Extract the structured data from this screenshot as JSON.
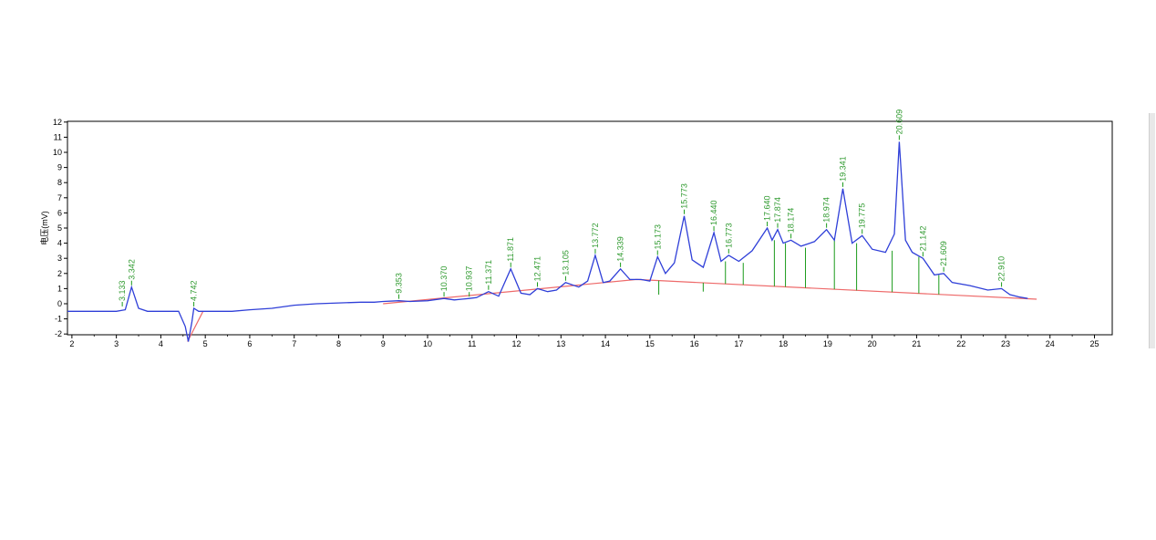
{
  "chart_data": {
    "type": "line",
    "ylabel": "电压(mV)",
    "xlabel": "",
    "xlim": [
      1.9,
      25.4
    ],
    "ylim": [
      -2.05,
      12.05
    ],
    "x_ticks": [
      2,
      3,
      4,
      5,
      6,
      7,
      8,
      9,
      10,
      11,
      12,
      13,
      14,
      15,
      16,
      17,
      18,
      19,
      20,
      21,
      22,
      23,
      24,
      25
    ],
    "y_ticks": [
      -2,
      -1,
      0,
      1,
      2,
      3,
      4,
      5,
      6,
      7,
      8,
      9,
      10,
      11,
      12
    ],
    "colors": {
      "signal": "#2f3fd8",
      "baseline": "#ee6a6a",
      "marker": "#1a9a1a",
      "label": "#2f9a2f",
      "axis": "#000000"
    },
    "series": [
      {
        "x": [
          1.9,
          2.5,
          3.0,
          3.2,
          3.342,
          3.5,
          3.7,
          4.0,
          4.4,
          4.55,
          4.62,
          4.7,
          4.742,
          4.85,
          5.2,
          5.6,
          6.0,
          6.5,
          7.0,
          7.5,
          8.0,
          8.5,
          8.8,
          9.0,
          9.353,
          9.6,
          10.0,
          10.37,
          10.6,
          10.937,
          11.1,
          11.371,
          11.6,
          11.871,
          12.1,
          12.3,
          12.471,
          12.7,
          12.9,
          13.105,
          13.4,
          13.6,
          13.772,
          13.95,
          14.1,
          14.339,
          14.55,
          14.8,
          15.0,
          15.173,
          15.35,
          15.55,
          15.773,
          15.95,
          16.2,
          16.44,
          16.6,
          16.773,
          17.0,
          17.3,
          17.64,
          17.75,
          17.874,
          18.0,
          18.174,
          18.4,
          18.7,
          18.974,
          19.15,
          19.341,
          19.55,
          19.775,
          20.0,
          20.3,
          20.5,
          20.609,
          20.75,
          20.9,
          21.142,
          21.4,
          21.609,
          21.8,
          22.2,
          22.6,
          22.91,
          23.1,
          23.3,
          23.5
        ],
        "y": [
          -0.5,
          -0.5,
          -0.5,
          -0.4,
          1.1,
          -0.3,
          -0.5,
          -0.5,
          -0.5,
          -1.5,
          -2.5,
          -1.2,
          -0.3,
          -0.5,
          -0.5,
          -0.5,
          -0.4,
          -0.3,
          -0.1,
          0.0,
          0.05,
          0.1,
          0.1,
          0.15,
          0.2,
          0.15,
          0.2,
          0.35,
          0.25,
          0.35,
          0.4,
          0.8,
          0.5,
          2.3,
          0.7,
          0.6,
          1.0,
          0.8,
          0.9,
          1.4,
          1.1,
          1.5,
          3.2,
          1.4,
          1.5,
          2.3,
          1.6,
          1.6,
          1.5,
          3.1,
          2.0,
          2.7,
          5.8,
          2.9,
          2.4,
          4.7,
          2.8,
          3.2,
          2.8,
          3.5,
          5.0,
          4.2,
          4.9,
          4.0,
          4.2,
          3.8,
          4.1,
          4.9,
          4.2,
          7.6,
          4.0,
          4.5,
          3.6,
          3.4,
          4.6,
          10.7,
          4.2,
          3.4,
          3.0,
          1.9,
          2.0,
          1.4,
          1.2,
          0.9,
          1.0,
          0.6,
          0.45,
          0.35
        ]
      }
    ],
    "baseline_segments": [
      [
        [
          9.0,
          0.0
        ],
        [
          14.7,
          1.6
        ],
        [
          23.7,
          0.3
        ]
      ],
      [
        [
          4.6,
          -2.5
        ],
        [
          4.95,
          -0.5
        ]
      ]
    ],
    "peaks": [
      {
        "label": "3.133",
        "x": 3.133,
        "y": -0.3
      },
      {
        "label": "3.342",
        "x": 3.342,
        "y": 1.1
      },
      {
        "label": "4.742",
        "x": 4.742,
        "y": -0.3
      },
      {
        "label": "9.353",
        "x": 9.353,
        "y": 0.2
      },
      {
        "label": "10.370",
        "x": 10.37,
        "y": 0.35
      },
      {
        "label": "10.937",
        "x": 10.937,
        "y": 0.35
      },
      {
        "label": "11.371",
        "x": 11.371,
        "y": 0.8
      },
      {
        "label": "11.871",
        "x": 11.871,
        "y": 2.3
      },
      {
        "label": "12.471",
        "x": 12.471,
        "y": 1.0
      },
      {
        "label": "13.105",
        "x": 13.105,
        "y": 1.4
      },
      {
        "label": "13.772",
        "x": 13.772,
        "y": 3.2
      },
      {
        "label": "14.339",
        "x": 14.339,
        "y": 2.3
      },
      {
        "label": "15.173",
        "x": 15.173,
        "y": 3.1
      },
      {
        "label": "15.773",
        "x": 15.773,
        "y": 5.8
      },
      {
        "label": "16.440",
        "x": 16.44,
        "y": 4.7
      },
      {
        "label": "16.773",
        "x": 16.773,
        "y": 3.2
      },
      {
        "label": "17.640",
        "x": 17.64,
        "y": 5.0
      },
      {
        "label": "17.874",
        "x": 17.874,
        "y": 4.9
      },
      {
        "label": "18.174",
        "x": 18.174,
        "y": 4.2
      },
      {
        "label": "18.974",
        "x": 18.974,
        "y": 4.9
      },
      {
        "label": "19.341",
        "x": 19.341,
        "y": 7.6
      },
      {
        "label": "19.775",
        "x": 19.775,
        "y": 4.5
      },
      {
        "label": "20.609",
        "x": 20.609,
        "y": 10.7
      },
      {
        "label": "21.142",
        "x": 21.142,
        "y": 3.0
      },
      {
        "label": "21.609",
        "x": 21.609,
        "y": 2.0
      },
      {
        "label": "22.910",
        "x": 22.91,
        "y": 1.0
      }
    ],
    "drop_lines": [
      [
        15.2,
        0.6
      ],
      [
        16.2,
        0.8
      ],
      [
        16.7,
        2.8
      ],
      [
        17.1,
        2.7
      ],
      [
        17.8,
        4.2
      ],
      [
        18.05,
        4.0
      ],
      [
        18.5,
        3.7
      ],
      [
        19.15,
        4.2
      ],
      [
        19.65,
        4.0
      ],
      [
        20.45,
        3.5
      ],
      [
        21.05,
        3.1
      ],
      [
        21.5,
        1.9
      ]
    ],
    "grid": false,
    "legend": "none"
  }
}
